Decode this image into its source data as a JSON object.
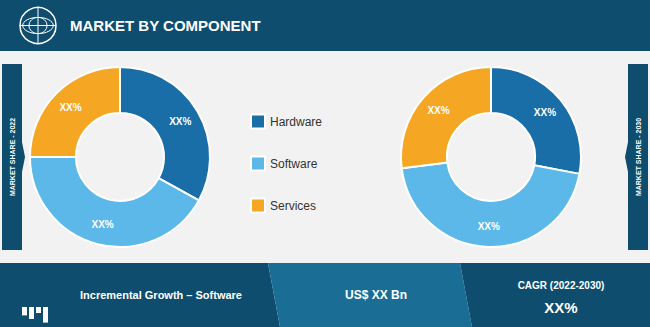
{
  "title": "MARKET BY COMPONENT",
  "annotations": [
    "Incremental Growth – Software",
    "US$ XX Bn",
    "CAGR (2022-2030)",
    "XX%"
  ],
  "chart_data": [
    {
      "type": "pie",
      "title": "MARKET SHARE - 2022",
      "categories": [
        "Hardware",
        "Software",
        "Services"
      ],
      "values": [
        33,
        42,
        25
      ],
      "value_labels": [
        "XX%",
        "XX%",
        "XX%"
      ],
      "colors": [
        "#1a6ea8",
        "#5bb8e8",
        "#f5a623"
      ],
      "data_labels": true,
      "legend": "center"
    },
    {
      "type": "pie",
      "title": "MARKET SHARE - 2030",
      "categories": [
        "Hardware",
        "Software",
        "Services"
      ],
      "values": [
        28,
        45,
        27
      ],
      "value_labels": [
        "XX%",
        "XX%",
        "XX%"
      ],
      "colors": [
        "#1a6ea8",
        "#5bb8e8",
        "#f5a623"
      ],
      "data_labels": true
    }
  ]
}
